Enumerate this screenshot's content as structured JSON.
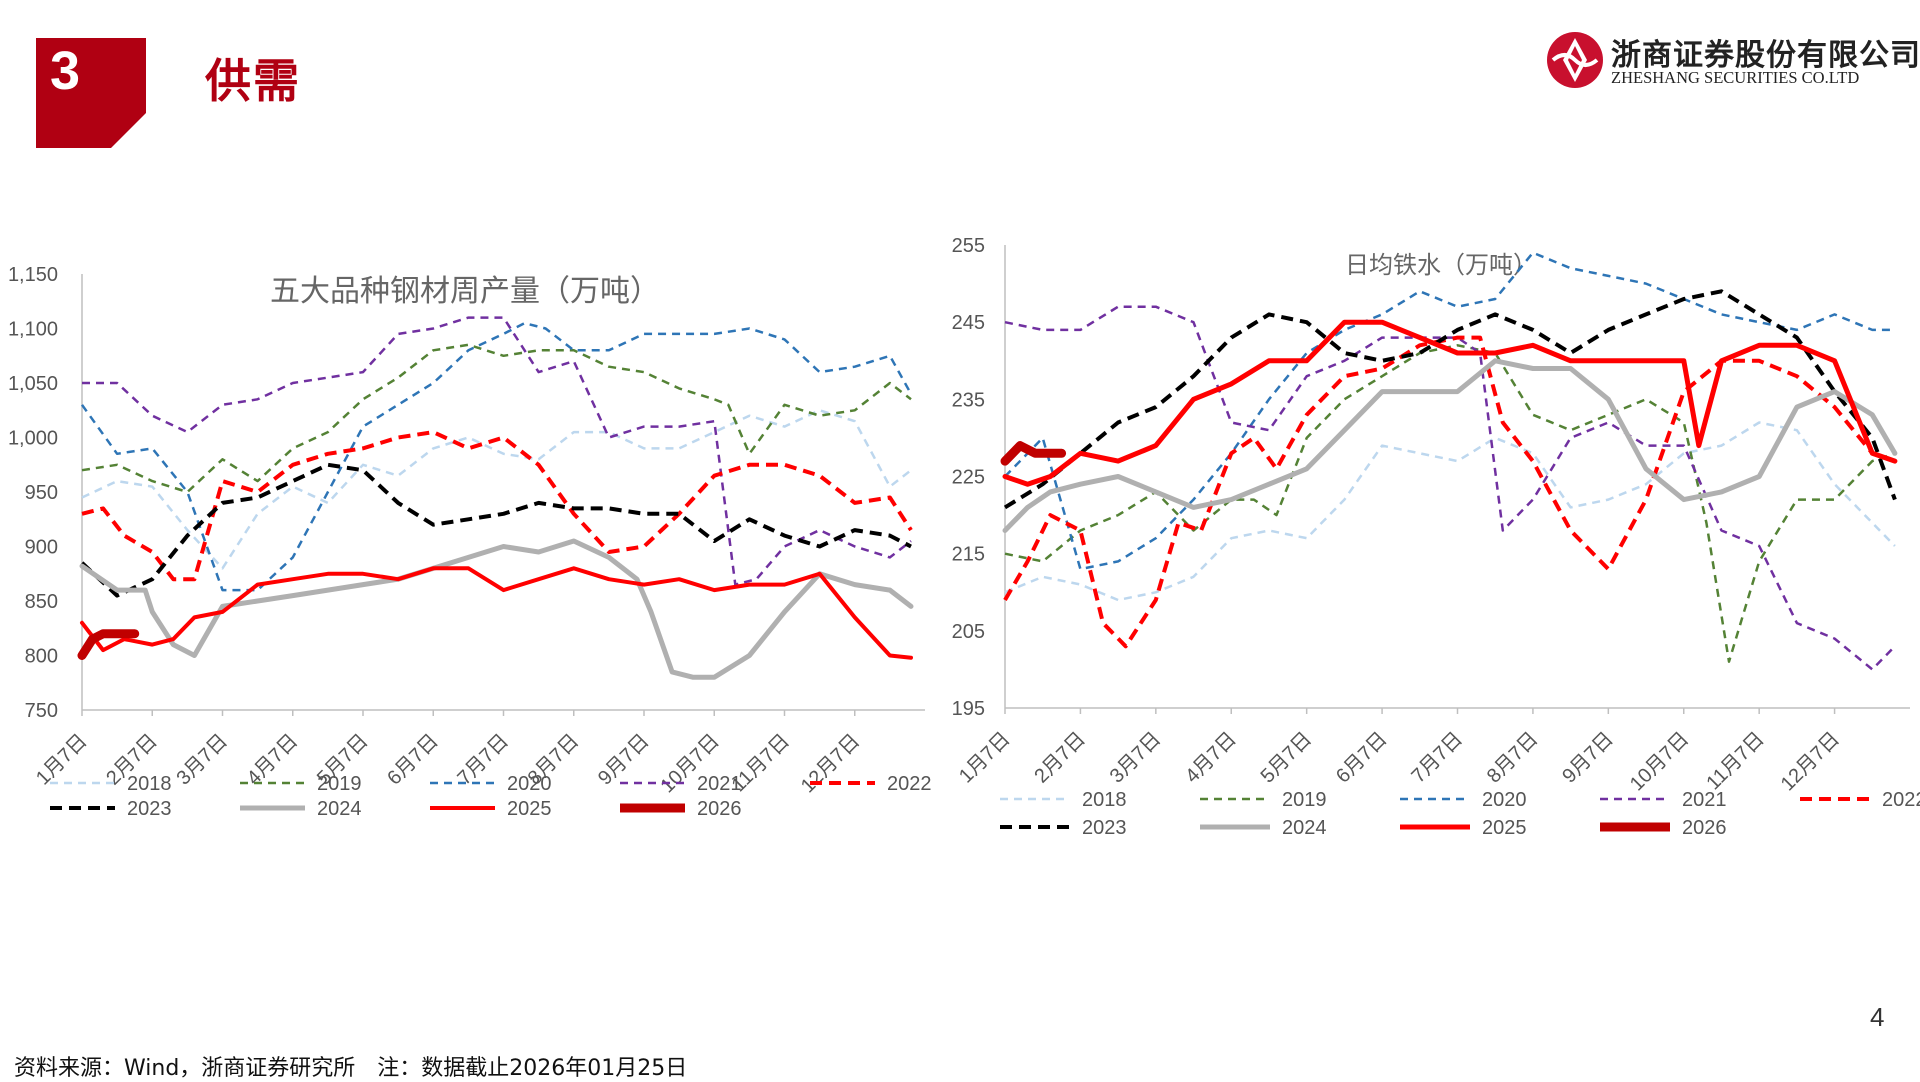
{
  "header": {
    "section_number": "3",
    "section_title": "供需"
  },
  "logo": {
    "name_cn": "浙商证券股份有限公司",
    "name_en": "ZHESHANG SECURITIES CO.LTD"
  },
  "page_number": "4",
  "footer": {
    "text": "资料来源：Wind，浙商证券研究所　注：数据截止2026年01月25日"
  },
  "colors": {
    "brand_red": "#b00012"
  },
  "chart_data": [
    {
      "type": "line",
      "title": "五大品种钢材周产量（万吨）",
      "ylim": [
        750,
        1150
      ],
      "yticks": [
        "750",
        "800",
        "850",
        "900",
        "950",
        "1,000",
        "1,050",
        "1,100",
        "1,150"
      ],
      "ytick_values": [
        750,
        800,
        850,
        900,
        950,
        1000,
        1050,
        1100,
        1150
      ],
      "categories": [
        "1月7日",
        "2月7日",
        "3月7日",
        "4月7日",
        "5月7日",
        "6月7日",
        "7月7日",
        "8月7日",
        "9月7日",
        "10月7日",
        "11月7日",
        "12月7日"
      ],
      "x_range": [
        0,
        12
      ],
      "series": [
        {
          "name": "2018",
          "color": "#bdd7ee",
          "dash": "8,6",
          "width": 2.5,
          "x": [
            0,
            0.5,
            1,
            1.5,
            2,
            2.5,
            3,
            3.5,
            4,
            4.5,
            5,
            5.5,
            6,
            6.5,
            7,
            7.5,
            8,
            8.5,
            9,
            9.5,
            10,
            10.5,
            11,
            11.5,
            11.8
          ],
          "y": [
            945,
            960,
            955,
            915,
            880,
            930,
            955,
            940,
            975,
            965,
            990,
            1000,
            985,
            980,
            1005,
            1005,
            990,
            990,
            1005,
            1020,
            1010,
            1025,
            1015,
            955,
            970
          ]
        },
        {
          "name": "2019",
          "color": "#548235",
          "dash": "8,6",
          "width": 2.5,
          "x": [
            0,
            0.5,
            1,
            1.5,
            2,
            2.5,
            3,
            3.5,
            4,
            4.5,
            5,
            5.5,
            6,
            6.5,
            7,
            7.5,
            8,
            8.5,
            9,
            9.2,
            9.5,
            10,
            10.5,
            11,
            11.5,
            11.8
          ],
          "y": [
            970,
            975,
            960,
            950,
            980,
            960,
            990,
            1005,
            1035,
            1055,
            1080,
            1085,
            1075,
            1080,
            1080,
            1065,
            1060,
            1045,
            1035,
            1030,
            985,
            1030,
            1020,
            1025,
            1050,
            1035
          ]
        },
        {
          "name": "2020",
          "color": "#2e75b6",
          "dash": "8,6",
          "width": 2.5,
          "x": [
            0,
            0.5,
            1,
            1.5,
            2,
            2.5,
            3,
            3.5,
            4,
            4.5,
            5,
            5.5,
            6,
            6.3,
            6.6,
            7,
            7.5,
            8,
            8.5,
            9,
            9.5,
            10,
            10.5,
            11,
            11.5,
            11.8
          ],
          "y": [
            1030,
            985,
            990,
            950,
            860,
            860,
            890,
            950,
            1010,
            1030,
            1050,
            1080,
            1095,
            1105,
            1100,
            1080,
            1080,
            1095,
            1095,
            1095,
            1100,
            1090,
            1060,
            1065,
            1075,
            1040
          ]
        },
        {
          "name": "2021",
          "color": "#7030a0",
          "dash": "8,6",
          "width": 2.5,
          "x": [
            0,
            0.5,
            1,
            1.5,
            2,
            2.5,
            3,
            3.5,
            4,
            4.5,
            5,
            5.5,
            6,
            6.5,
            7,
            7.5,
            8,
            8.5,
            9,
            9.3,
            9.6,
            10,
            10.5,
            11,
            11.5,
            11.8
          ],
          "y": [
            1050,
            1050,
            1020,
            1005,
            1030,
            1035,
            1050,
            1055,
            1060,
            1095,
            1100,
            1110,
            1110,
            1060,
            1070,
            1000,
            1010,
            1010,
            1015,
            865,
            870,
            900,
            915,
            900,
            890,
            905
          ]
        },
        {
          "name": "2022",
          "color": "#ff0000",
          "dash": "12,7",
          "width": 4,
          "x": [
            0,
            0.3,
            0.6,
            1,
            1.3,
            1.6,
            2,
            2.5,
            3,
            3.5,
            4,
            4.5,
            5,
            5.5,
            6,
            6.5,
            7,
            7.5,
            8,
            8.5,
            9,
            9.5,
            10,
            10.5,
            11,
            11.5,
            11.8
          ],
          "y": [
            930,
            935,
            910,
            895,
            870,
            870,
            960,
            950,
            975,
            985,
            990,
            1000,
            1005,
            990,
            1000,
            975,
            930,
            895,
            900,
            930,
            965,
            975,
            975,
            965,
            940,
            945,
            915
          ]
        },
        {
          "name": "2023",
          "color": "#000000",
          "dash": "12,7",
          "width": 4,
          "x": [
            0,
            0.5,
            1,
            1.5,
            2,
            2.5,
            3,
            3.5,
            4,
            4.5,
            5,
            5.5,
            6,
            6.5,
            7,
            7.5,
            8,
            8.5,
            9,
            9.5,
            10,
            10.5,
            11,
            11.5,
            11.8
          ],
          "y": [
            885,
            855,
            870,
            910,
            940,
            945,
            960,
            975,
            970,
            940,
            920,
            925,
            930,
            940,
            935,
            935,
            930,
            930,
            905,
            925,
            910,
            900,
            915,
            910,
            900
          ]
        },
        {
          "name": "2024",
          "color": "#b0b0b0",
          "dash": "",
          "width": 5,
          "x": [
            0,
            0.5,
            0.9,
            1,
            1.3,
            1.6,
            2,
            2.5,
            3,
            3.5,
            4,
            4.5,
            5,
            5.5,
            6,
            6.5,
            7,
            7.5,
            7.9,
            8.1,
            8.4,
            8.7,
            9,
            9.5,
            10,
            10.5,
            11,
            11.5,
            11.8
          ],
          "y": [
            882,
            860,
            860,
            840,
            810,
            800,
            845,
            850,
            855,
            860,
            865,
            870,
            880,
            890,
            900,
            895,
            905,
            890,
            870,
            840,
            785,
            780,
            780,
            800,
            840,
            875,
            865,
            860,
            845
          ]
        },
        {
          "name": "2025",
          "color": "#ff0000",
          "dash": "",
          "width": 4,
          "x": [
            0,
            0.3,
            0.6,
            1,
            1.3,
            1.6,
            2,
            2.5,
            3,
            3.5,
            4,
            4.5,
            5,
            5.5,
            6,
            6.5,
            7,
            7.5,
            8,
            8.5,
            9,
            9.5,
            10,
            10.5,
            11,
            11.5,
            11.8
          ],
          "y": [
            830,
            805,
            815,
            810,
            815,
            835,
            840,
            865,
            870,
            875,
            875,
            870,
            880,
            880,
            860,
            870,
            880,
            870,
            865,
            870,
            860,
            865,
            865,
            875,
            835,
            800,
            798
          ]
        },
        {
          "name": "2026",
          "color": "#c00000",
          "dash": "",
          "width": 9,
          "x": [
            0,
            0.15,
            0.3,
            0.45,
            0.6,
            0.75
          ],
          "y": [
            800,
            815,
            820,
            820,
            820,
            820
          ]
        }
      ]
    },
    {
      "type": "line",
      "title": "日均铁水（万吨）",
      "ylim": [
        195,
        255
      ],
      "yticks": [
        "195",
        "205",
        "215",
        "225",
        "235",
        "245",
        "255"
      ],
      "ytick_values": [
        195,
        205,
        215,
        225,
        235,
        245,
        255
      ],
      "categories": [
        "1月7日",
        "2月7日",
        "3月7日",
        "4月7日",
        "5月7日",
        "6月7日",
        "7月7日",
        "8月7日",
        "9月7日",
        "10月7日",
        "11月7日",
        "12月7日"
      ],
      "x_range": [
        0,
        12
      ],
      "series": [
        {
          "name": "2018",
          "color": "#bdd7ee",
          "dash": "8,6",
          "width": 2.5,
          "x": [
            0,
            0.5,
            1,
            1.5,
            2,
            2.5,
            3,
            3.5,
            4,
            4.5,
            5,
            5.5,
            6,
            6.5,
            7,
            7.5,
            8,
            8.5,
            9,
            9.5,
            10,
            10.5,
            11,
            11.5,
            11.8
          ],
          "y": [
            210,
            212,
            211,
            209,
            210,
            212,
            217,
            218,
            217,
            222,
            229,
            228,
            227,
            230,
            228,
            221,
            222,
            224,
            228,
            229,
            232,
            231,
            224,
            219,
            216
          ]
        },
        {
          "name": "2019",
          "color": "#548235",
          "dash": "8,6",
          "width": 2.5,
          "x": [
            0,
            0.5,
            1,
            1.5,
            2,
            2.5,
            3,
            3.3,
            3.6,
            4,
            4.5,
            5,
            5.5,
            6,
            6.5,
            7,
            7.5,
            8,
            8.5,
            9,
            9.3,
            9.6,
            10,
            10.5,
            11,
            11.5,
            11.8
          ],
          "y": [
            215,
            214,
            218,
            220,
            223,
            218,
            222,
            222,
            220,
            230,
            235,
            238,
            241,
            242,
            241,
            233,
            231,
            233,
            235,
            232,
            219,
            201,
            214,
            222,
            222,
            227,
            228
          ]
        },
        {
          "name": "2020",
          "color": "#2e75b6",
          "dash": "8,6",
          "width": 2.5,
          "x": [
            0,
            0.5,
            1,
            1.5,
            2,
            2.5,
            3,
            3.5,
            4,
            4.5,
            5,
            5.5,
            6,
            6.5,
            7,
            7.5,
            8,
            8.5,
            9,
            9.5,
            10,
            10.5,
            11,
            11.5,
            11.8
          ],
          "y": [
            225,
            230,
            213,
            214,
            217,
            222,
            228,
            235,
            241,
            244,
            246,
            249,
            247,
            248,
            254,
            252,
            251,
            250,
            248,
            246,
            245,
            244,
            246,
            244,
            244
          ]
        },
        {
          "name": "2021",
          "color": "#7030a0",
          "dash": "8,6",
          "width": 2.5,
          "x": [
            0,
            0.5,
            1,
            1.5,
            2,
            2.5,
            3,
            3.5,
            4,
            4.5,
            5,
            5.5,
            6,
            6.3,
            6.6,
            7,
            7.5,
            8,
            8.5,
            9,
            9.5,
            10,
            10.5,
            11,
            11.5,
            11.8
          ],
          "y": [
            245,
            244,
            244,
            247,
            247,
            245,
            232,
            231,
            238,
            240,
            243,
            243,
            243,
            241,
            218,
            222,
            230,
            232,
            229,
            229,
            218,
            216,
            206,
            204,
            200,
            203
          ]
        },
        {
          "name": "2022",
          "color": "#ff0000",
          "dash": "12,7",
          "width": 4,
          "x": [
            0,
            0.3,
            0.6,
            1,
            1.3,
            1.6,
            2,
            2.3,
            2.6,
            3,
            3.3,
            3.6,
            4,
            4.5,
            5,
            5.5,
            6,
            6.3,
            6.6,
            7,
            7.5,
            8,
            8.5,
            9,
            9.5,
            10,
            10.5,
            11,
            11.5,
            11.8
          ],
          "y": [
            209,
            214,
            220,
            218,
            206,
            203,
            209,
            219,
            218,
            228,
            230,
            226,
            233,
            238,
            239,
            242,
            243,
            243,
            232,
            227,
            218,
            213,
            222,
            236,
            240,
            240,
            238,
            234,
            228,
            227
          ]
        },
        {
          "name": "2023",
          "color": "#000000",
          "dash": "12,7",
          "width": 4,
          "x": [
            0,
            0.5,
            1,
            1.5,
            2,
            2.5,
            3,
            3.5,
            4,
            4.5,
            5,
            5.5,
            6,
            6.5,
            7,
            7.5,
            8,
            8.5,
            9,
            9.5,
            10,
            10.5,
            11,
            11.5,
            11.8
          ],
          "y": [
            221,
            224,
            228,
            232,
            234,
            238,
            243,
            246,
            245,
            241,
            240,
            241,
            244,
            246,
            244,
            241,
            244,
            246,
            248,
            249,
            246,
            243,
            236,
            230,
            222
          ]
        },
        {
          "name": "2024",
          "color": "#b0b0b0",
          "dash": "",
          "width": 5,
          "x": [
            0,
            0.3,
            0.6,
            1,
            1.5,
            2,
            2.5,
            3,
            3.5,
            4,
            4.5,
            5,
            5.5,
            6,
            6.5,
            7,
            7.5,
            8,
            8.5,
            9,
            9.5,
            10,
            10.5,
            11,
            11.5,
            11.8
          ],
          "y": [
            218,
            221,
            223,
            224,
            225,
            223,
            221,
            222,
            224,
            226,
            231,
            236,
            236,
            236,
            240,
            239,
            239,
            235,
            226,
            222,
            223,
            225,
            234,
            236,
            233,
            228
          ]
        },
        {
          "name": "2025",
          "color": "#ff0000",
          "dash": "",
          "width": 5,
          "x": [
            0,
            0.3,
            0.6,
            1,
            1.5,
            2,
            2.5,
            3,
            3.5,
            4,
            4.5,
            5,
            5.5,
            6,
            6.5,
            7,
            7.5,
            8,
            8.5,
            9,
            9.2,
            9.5,
            10,
            10.5,
            11,
            11.5,
            11.8
          ],
          "y": [
            225,
            224,
            225,
            228,
            227,
            229,
            235,
            237,
            240,
            240,
            245,
            245,
            243,
            241,
            241,
            242,
            240,
            240,
            240,
            240,
            229,
            240,
            242,
            242,
            240,
            228,
            227
          ]
        },
        {
          "name": "2026",
          "color": "#c00000",
          "dash": "",
          "width": 9,
          "x": [
            0,
            0.2,
            0.4,
            0.6,
            0.75
          ],
          "y": [
            227,
            229,
            228,
            228,
            228
          ]
        }
      ]
    }
  ]
}
